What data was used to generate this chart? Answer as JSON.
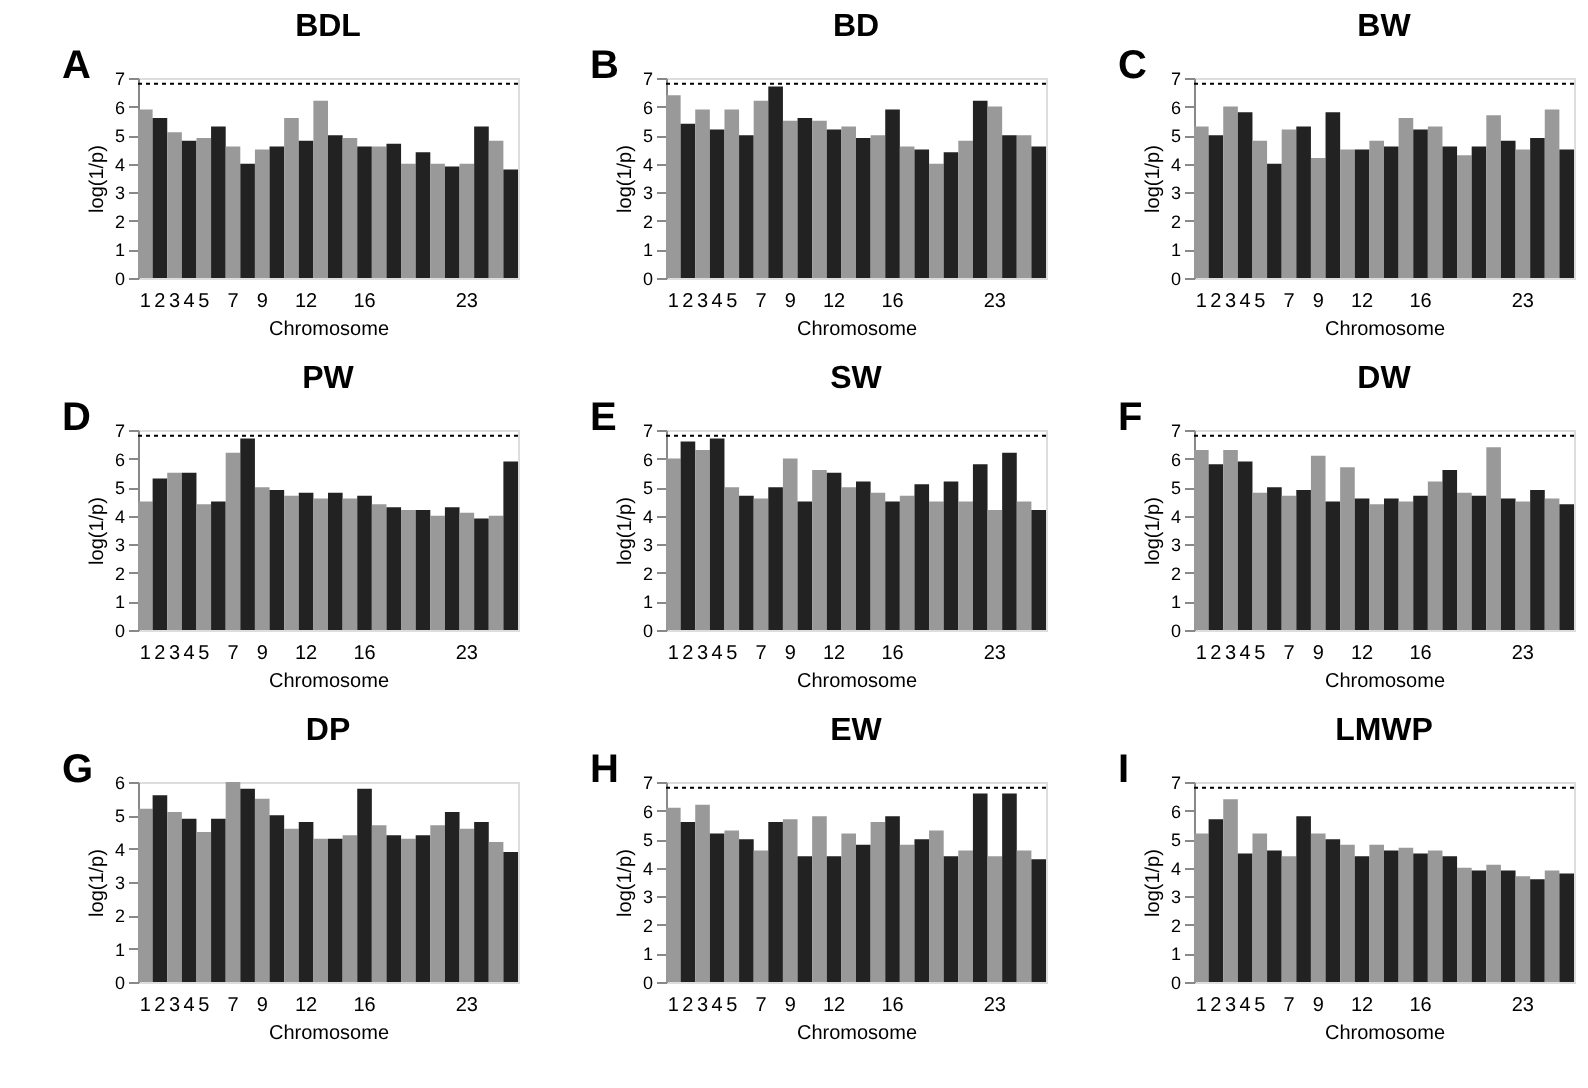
{
  "chart_data": [
    {
      "type": "bar",
      "title": "BDL",
      "annotations": [
        "A"
      ],
      "xlabel": "Chromosome",
      "ylabel": "log(1/p)",
      "categories": [
        "1",
        "2",
        "3",
        "4",
        "5",
        null,
        "7",
        null,
        "9",
        null,
        null,
        "12",
        null,
        null,
        null,
        "16",
        null,
        null,
        null,
        null,
        null,
        null,
        "23",
        null,
        null,
        null
      ],
      "values": [
        5.9,
        5.6,
        5.1,
        4.8,
        4.9,
        5.3,
        4.6,
        4.0,
        4.5,
        4.6,
        5.6,
        4.8,
        6.2,
        5.0,
        4.9,
        4.6,
        4.6,
        4.7,
        4.0,
        4.4,
        4.0,
        3.9,
        4.0,
        5.3,
        4.8,
        3.8
      ],
      "colors": [
        "#999999",
        "#222222",
        "#999999",
        "#222222",
        "#999999",
        "#222222",
        "#999999",
        "#222222",
        "#999999",
        "#222222",
        "#999999",
        "#222222",
        "#999999",
        "#222222",
        "#999999",
        "#222222",
        "#999999",
        "#222222",
        "#999999",
        "#222222",
        "#999999",
        "#222222",
        "#999999",
        "#222222",
        "#999999",
        "#222222"
      ],
      "ylim": [
        0,
        7
      ],
      "yticks": [
        0,
        1,
        2,
        3,
        4,
        5,
        6,
        7
      ],
      "grid": false,
      "legend": false,
      "ref_lines": [
        {
          "axis": "y",
          "value": 6.8,
          "color": "#000000",
          "line_style": "dotted"
        }
      ]
    },
    {
      "type": "bar",
      "title": "BD",
      "annotations": [
        "B"
      ],
      "xlabel": "Chromosome",
      "ylabel": "log(1/p)",
      "categories": [
        "1",
        "2",
        "3",
        "4",
        "5",
        null,
        "7",
        null,
        "9",
        null,
        null,
        "12",
        null,
        null,
        null,
        "16",
        null,
        null,
        null,
        null,
        null,
        null,
        "23",
        null,
        null,
        null
      ],
      "values": [
        6.4,
        5.4,
        5.9,
        5.2,
        5.9,
        5.0,
        6.2,
        6.7,
        5.5,
        5.6,
        5.5,
        5.2,
        5.3,
        4.9,
        5.0,
        5.9,
        4.6,
        4.5,
        4.0,
        4.4,
        4.8,
        6.2,
        6.0,
        5.0,
        5.0,
        4.6
      ],
      "colors": [
        "#999999",
        "#222222",
        "#999999",
        "#222222",
        "#999999",
        "#222222",
        "#999999",
        "#222222",
        "#999999",
        "#222222",
        "#999999",
        "#222222",
        "#999999",
        "#222222",
        "#999999",
        "#222222",
        "#999999",
        "#222222",
        "#999999",
        "#222222",
        "#999999",
        "#222222",
        "#999999",
        "#222222",
        "#999999",
        "#222222"
      ],
      "ylim": [
        0,
        7
      ],
      "yticks": [
        0,
        1,
        2,
        3,
        4,
        5,
        6,
        7
      ],
      "grid": false,
      "legend": false,
      "ref_lines": [
        {
          "axis": "y",
          "value": 6.8,
          "color": "#000000",
          "line_style": "dotted"
        }
      ]
    },
    {
      "type": "bar",
      "title": "BW",
      "annotations": [
        "C"
      ],
      "xlabel": "Chromosome",
      "ylabel": "log(1/p)",
      "categories": [
        "1",
        "2",
        "3",
        "4",
        "5",
        null,
        "7",
        null,
        "9",
        null,
        null,
        "12",
        null,
        null,
        null,
        "16",
        null,
        null,
        null,
        null,
        null,
        null,
        "23",
        null,
        null,
        null
      ],
      "values": [
        5.3,
        5.0,
        6.0,
        5.8,
        4.8,
        4.0,
        5.2,
        5.3,
        4.2,
        5.8,
        4.5,
        4.5,
        4.8,
        4.6,
        5.6,
        5.2,
        5.3,
        4.6,
        4.3,
        4.6,
        5.7,
        4.8,
        4.5,
        4.9,
        5.9,
        4.5
      ],
      "colors": [
        "#999999",
        "#222222",
        "#999999",
        "#222222",
        "#999999",
        "#222222",
        "#999999",
        "#222222",
        "#999999",
        "#222222",
        "#999999",
        "#222222",
        "#999999",
        "#222222",
        "#999999",
        "#222222",
        "#999999",
        "#222222",
        "#999999",
        "#222222",
        "#999999",
        "#222222",
        "#999999",
        "#222222",
        "#999999",
        "#222222"
      ],
      "ylim": [
        0,
        7
      ],
      "yticks": [
        0,
        1,
        2,
        3,
        4,
        5,
        6,
        7
      ],
      "grid": false,
      "legend": false,
      "ref_lines": [
        {
          "axis": "y",
          "value": 6.8,
          "color": "#000000",
          "line_style": "dotted"
        }
      ]
    },
    {
      "type": "bar",
      "title": "PW",
      "annotations": [
        "D"
      ],
      "xlabel": "Chromosome",
      "ylabel": "log(1/p)",
      "categories": [
        "1",
        "2",
        "3",
        "4",
        "5",
        null,
        "7",
        null,
        "9",
        null,
        null,
        "12",
        null,
        null,
        null,
        "16",
        null,
        null,
        null,
        null,
        null,
        null,
        "23",
        null,
        null,
        null
      ],
      "values": [
        4.5,
        5.3,
        5.5,
        5.5,
        4.4,
        4.5,
        6.2,
        6.7,
        5.0,
        4.9,
        4.7,
        4.8,
        4.6,
        4.8,
        4.6,
        4.7,
        4.4,
        4.3,
        4.2,
        4.2,
        4.0,
        4.3,
        4.1,
        3.9,
        4.0,
        5.9
      ],
      "colors": [
        "#999999",
        "#222222",
        "#999999",
        "#222222",
        "#999999",
        "#222222",
        "#999999",
        "#222222",
        "#999999",
        "#222222",
        "#999999",
        "#222222",
        "#999999",
        "#222222",
        "#999999",
        "#222222",
        "#999999",
        "#222222",
        "#999999",
        "#222222",
        "#999999",
        "#222222",
        "#999999",
        "#222222",
        "#999999",
        "#222222"
      ],
      "ylim": [
        0,
        7
      ],
      "yticks": [
        0,
        1,
        2,
        3,
        4,
        5,
        6,
        7
      ],
      "grid": false,
      "legend": false,
      "ref_lines": [
        {
          "axis": "y",
          "value": 6.8,
          "color": "#000000",
          "line_style": "dotted"
        }
      ]
    },
    {
      "type": "bar",
      "title": "SW",
      "annotations": [
        "E"
      ],
      "xlabel": "Chromosome",
      "ylabel": "log(1/p)",
      "categories": [
        "1",
        "2",
        "3",
        "4",
        "5",
        null,
        "7",
        null,
        "9",
        null,
        null,
        "12",
        null,
        null,
        null,
        "16",
        null,
        null,
        null,
        null,
        null,
        null,
        "23",
        null,
        null,
        null
      ],
      "values": [
        6.0,
        6.6,
        6.3,
        6.7,
        5.0,
        4.7,
        4.6,
        5.0,
        6.0,
        4.5,
        5.6,
        5.5,
        5.0,
        5.2,
        4.8,
        4.5,
        4.7,
        5.1,
        4.5,
        5.2,
        4.5,
        5.8,
        4.2,
        6.2,
        4.5,
        4.2
      ],
      "colors": [
        "#999999",
        "#222222",
        "#999999",
        "#222222",
        "#999999",
        "#222222",
        "#999999",
        "#222222",
        "#999999",
        "#222222",
        "#999999",
        "#222222",
        "#999999",
        "#222222",
        "#999999",
        "#222222",
        "#999999",
        "#222222",
        "#999999",
        "#222222",
        "#999999",
        "#222222",
        "#999999",
        "#222222",
        "#999999",
        "#222222"
      ],
      "ylim": [
        0,
        7
      ],
      "yticks": [
        0,
        1,
        2,
        3,
        4,
        5,
        6,
        7
      ],
      "grid": false,
      "legend": false,
      "ref_lines": [
        {
          "axis": "y",
          "value": 6.8,
          "color": "#000000",
          "line_style": "dotted"
        }
      ]
    },
    {
      "type": "bar",
      "title": "DW",
      "annotations": [
        "F"
      ],
      "xlabel": "Chromosome",
      "ylabel": "log(1/p)",
      "categories": [
        "1",
        "2",
        "3",
        "4",
        "5",
        null,
        "7",
        null,
        "9",
        null,
        null,
        "12",
        null,
        null,
        null,
        "16",
        null,
        null,
        null,
        null,
        null,
        null,
        "23",
        null,
        null,
        null
      ],
      "values": [
        6.3,
        5.8,
        6.3,
        5.9,
        4.8,
        5.0,
        4.7,
        4.9,
        6.1,
        4.5,
        5.7,
        4.6,
        4.4,
        4.6,
        4.5,
        4.7,
        5.2,
        5.6,
        4.8,
        4.7,
        6.4,
        4.6,
        4.5,
        4.9,
        4.6,
        4.4
      ],
      "colors": [
        "#999999",
        "#222222",
        "#999999",
        "#222222",
        "#999999",
        "#222222",
        "#999999",
        "#222222",
        "#999999",
        "#222222",
        "#999999",
        "#222222",
        "#999999",
        "#222222",
        "#999999",
        "#222222",
        "#999999",
        "#222222",
        "#999999",
        "#222222",
        "#999999",
        "#222222",
        "#999999",
        "#222222",
        "#999999",
        "#222222"
      ],
      "ylim": [
        0,
        7
      ],
      "yticks": [
        0,
        1,
        2,
        3,
        4,
        5,
        6,
        7
      ],
      "grid": false,
      "legend": false,
      "ref_lines": [
        {
          "axis": "y",
          "value": 6.8,
          "color": "#000000",
          "line_style": "dotted"
        }
      ]
    },
    {
      "type": "bar",
      "title": "DP",
      "annotations": [
        "G"
      ],
      "xlabel": "Chromosome",
      "ylabel": "log(1/p)",
      "categories": [
        "1",
        "2",
        "3",
        "4",
        "5",
        null,
        "7",
        null,
        "9",
        null,
        null,
        "12",
        null,
        null,
        null,
        "16",
        null,
        null,
        null,
        null,
        null,
        null,
        "23",
        null,
        null,
        null
      ],
      "values": [
        5.2,
        5.6,
        5.1,
        4.9,
        4.5,
        4.9,
        6.0,
        5.8,
        5.5,
        5.0,
        4.6,
        4.8,
        4.3,
        4.3,
        4.4,
        5.8,
        4.7,
        4.4,
        4.3,
        4.4,
        4.7,
        5.1,
        4.6,
        4.8,
        4.2,
        3.9
      ],
      "colors": [
        "#999999",
        "#222222",
        "#999999",
        "#222222",
        "#999999",
        "#222222",
        "#999999",
        "#222222",
        "#999999",
        "#222222",
        "#999999",
        "#222222",
        "#999999",
        "#222222",
        "#999999",
        "#222222",
        "#999999",
        "#222222",
        "#999999",
        "#222222",
        "#999999",
        "#222222",
        "#999999",
        "#222222",
        "#999999",
        "#222222"
      ],
      "ylim": [
        0,
        6
      ],
      "yticks": [
        0,
        1,
        2,
        3,
        4,
        5,
        6
      ],
      "grid": false,
      "legend": false
    },
    {
      "type": "bar",
      "title": "EW",
      "annotations": [
        "H"
      ],
      "xlabel": "Chromosome",
      "ylabel": "log(1/p)",
      "categories": [
        "1",
        "2",
        "3",
        "4",
        "5",
        null,
        "7",
        null,
        "9",
        null,
        null,
        "12",
        null,
        null,
        null,
        "16",
        null,
        null,
        null,
        null,
        null,
        null,
        "23",
        null,
        null,
        null
      ],
      "values": [
        6.1,
        5.6,
        6.2,
        5.2,
        5.3,
        5.0,
        4.6,
        5.6,
        5.7,
        4.4,
        5.8,
        4.4,
        5.2,
        4.8,
        5.6,
        5.8,
        4.8,
        5.0,
        5.3,
        4.4,
        4.6,
        6.6,
        4.4,
        6.6,
        4.6,
        4.3
      ],
      "colors": [
        "#999999",
        "#222222",
        "#999999",
        "#222222",
        "#999999",
        "#222222",
        "#999999",
        "#222222",
        "#999999",
        "#222222",
        "#999999",
        "#222222",
        "#999999",
        "#222222",
        "#999999",
        "#222222",
        "#999999",
        "#222222",
        "#999999",
        "#222222",
        "#999999",
        "#222222",
        "#999999",
        "#222222",
        "#999999",
        "#222222"
      ],
      "ylim": [
        0,
        7
      ],
      "yticks": [
        0,
        1,
        2,
        3,
        4,
        5,
        6,
        7
      ],
      "grid": false,
      "legend": false,
      "ref_lines": [
        {
          "axis": "y",
          "value": 6.8,
          "color": "#000000",
          "line_style": "dotted"
        }
      ]
    },
    {
      "type": "bar",
      "title": "LMWP",
      "annotations": [
        "I"
      ],
      "xlabel": "Chromosome",
      "ylabel": "log(1/p)",
      "categories": [
        "1",
        "2",
        "3",
        "4",
        "5",
        null,
        "7",
        null,
        "9",
        null,
        null,
        "12",
        null,
        null,
        null,
        "16",
        null,
        null,
        null,
        null,
        null,
        null,
        "23",
        null,
        null,
        null
      ],
      "values": [
        5.2,
        5.7,
        6.4,
        4.5,
        5.2,
        4.6,
        4.4,
        5.8,
        5.2,
        5.0,
        4.8,
        4.4,
        4.8,
        4.6,
        4.7,
        4.5,
        4.6,
        4.4,
        4.0,
        3.9,
        4.1,
        3.9,
        3.7,
        3.6,
        3.9,
        3.8
      ],
      "colors": [
        "#999999",
        "#222222",
        "#999999",
        "#222222",
        "#999999",
        "#222222",
        "#999999",
        "#222222",
        "#999999",
        "#222222",
        "#999999",
        "#222222",
        "#999999",
        "#222222",
        "#999999",
        "#222222",
        "#999999",
        "#222222",
        "#999999",
        "#222222",
        "#999999",
        "#222222",
        "#999999",
        "#222222",
        "#999999",
        "#222222"
      ],
      "ylim": [
        0,
        7
      ],
      "yticks": [
        0,
        1,
        2,
        3,
        4,
        5,
        6,
        7
      ],
      "grid": false,
      "legend": false,
      "ref_lines": [
        {
          "axis": "y",
          "value": 6.8,
          "color": "#000000",
          "line_style": "dotted"
        }
      ]
    }
  ]
}
